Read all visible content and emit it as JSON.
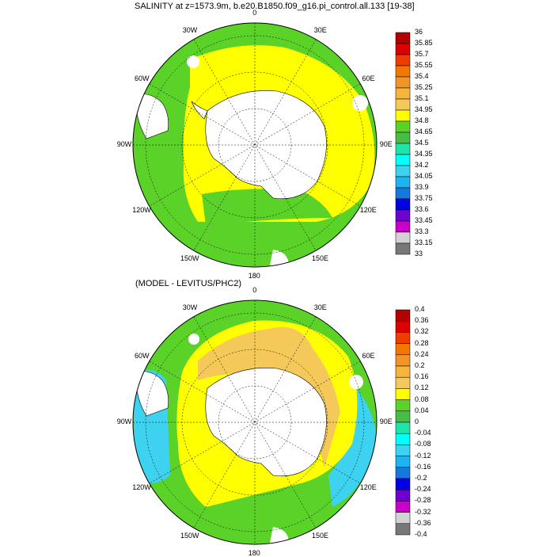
{
  "titles": {
    "top": "SALINITY at z=1573.9m, b.e20.B1850.f09_g16.pi_control.all.133 [19-38]",
    "bottom": "(MODEL - LEVITUS/PHC2)"
  },
  "longitude_labels": [
    "0",
    "30E",
    "60E",
    "90E",
    "120E",
    "150E",
    "180",
    "150W",
    "120W",
    "90W",
    "60W",
    "30W"
  ],
  "colorbars": {
    "top": {
      "labels": [
        "36",
        "35.85",
        "35.7",
        "35.55",
        "35.4",
        "35.25",
        "35.1",
        "34.95",
        "34.8",
        "34.65",
        "34.5",
        "34.35",
        "34.2",
        "34.05",
        "33.9",
        "33.75",
        "33.6",
        "33.45",
        "33.3",
        "33.15",
        "33"
      ],
      "colors": [
        "#b40000",
        "#dc0000",
        "#f03c00",
        "#f07800",
        "#f09628",
        "#f5b43c",
        "#f5c85a",
        "#ffff00",
        "#5ad228",
        "#46be46",
        "#1ee6aa",
        "#00ffff",
        "#3cd2f0",
        "#1eb4f0",
        "#1478dc",
        "#0000e6",
        "#6e00d2",
        "#c800c8",
        "#d2d2d2",
        "#787878"
      ]
    },
    "bottom": {
      "labels": [
        "0.4",
        "0.36",
        "0.32",
        "0.28",
        "0.24",
        "0.2",
        "0.16",
        "0.12",
        "0.08",
        "0.04",
        "0",
        "-0.04",
        "-0.08",
        "-0.12",
        "-0.16",
        "-0.2",
        "-0.24",
        "-0.28",
        "-0.32",
        "-0.36",
        "-0.4"
      ],
      "colors": [
        "#b40000",
        "#dc0000",
        "#f03c00",
        "#f07800",
        "#f09628",
        "#f5b43c",
        "#f5c85a",
        "#ffff00",
        "#5ad228",
        "#46be46",
        "#1ee6aa",
        "#00ffff",
        "#3cd2f0",
        "#1eb4f0",
        "#1478dc",
        "#0000e6",
        "#6e00d2",
        "#c800c8",
        "#d2d2d2",
        "#787878"
      ]
    }
  },
  "map_colors": {
    "land": "#ffffff",
    "salinity_green": "#5ad228",
    "salinity_yellow": "#ffff00",
    "diff_orange": "#f5c85a",
    "diff_yellow": "#ffff00",
    "diff_green": "#5ad228",
    "diff_cyan": "#3cd2f0",
    "diff_teal": "#1ee6aa"
  }
}
